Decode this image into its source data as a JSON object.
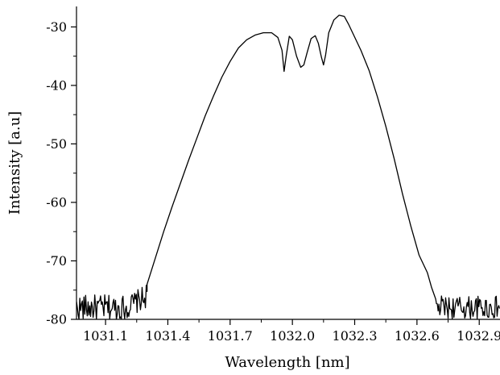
{
  "chart_data": {
    "type": "line",
    "title": "",
    "xlabel": "Wavelength [nm]",
    "ylabel": "Intensity [a.u]",
    "xlim": [
      1030.96,
      1033.0
    ],
    "ylim": [
      -80,
      -26.5
    ],
    "x_ticks": [
      1031.1,
      1031.4,
      1031.7,
      1032.0,
      1032.3,
      1032.6,
      1032.9
    ],
    "x_tick_labels": [
      "1031.1",
      "1031.4",
      "1031.7",
      "1032.0",
      "1032.3",
      "1032.6",
      "1032.9"
    ],
    "x_minor_ticks": [
      1031.25,
      1031.55,
      1031.85,
      1032.15,
      1032.45,
      1032.75
    ],
    "y_ticks": [
      -80,
      -70,
      -60,
      -50,
      -40,
      -30
    ],
    "y_tick_labels": [
      "-80",
      "-70",
      "-60",
      "-50",
      "-40",
      "-30"
    ],
    "y_minor_ticks": [
      -75,
      -65,
      -55,
      -45,
      -35
    ],
    "grid": false,
    "legend": "none",
    "line_color": "#000000",
    "series": [
      {
        "x": [
          1031.3,
          1031.34,
          1031.38,
          1031.42,
          1031.46,
          1031.5,
          1031.54,
          1031.58,
          1031.62,
          1031.66,
          1031.7,
          1031.74,
          1031.78,
          1031.82,
          1031.86,
          1031.9,
          1031.93,
          1031.95,
          1031.96,
          1031.97,
          1031.985,
          1032.0,
          1032.02,
          1032.04,
          1032.055,
          1032.07,
          1032.09,
          1032.11,
          1032.125,
          1032.14,
          1032.15,
          1032.16,
          1032.175,
          1032.2,
          1032.225,
          1032.25,
          1032.27,
          1032.29,
          1032.33,
          1032.37,
          1032.41,
          1032.45,
          1032.49,
          1032.53,
          1032.57,
          1032.61,
          1032.65,
          1032.67,
          1032.69
        ],
        "y": [
          -74.0,
          -69.5,
          -65.0,
          -60.8,
          -56.8,
          -52.8,
          -49.0,
          -45.2,
          -41.8,
          -38.6,
          -35.9,
          -33.6,
          -32.2,
          -31.4,
          -31.0,
          -31.0,
          -31.8,
          -34.0,
          -37.6,
          -35.0,
          -31.6,
          -32.2,
          -35.0,
          -36.9,
          -36.5,
          -34.5,
          -32.0,
          -31.5,
          -32.8,
          -35.2,
          -36.5,
          -34.8,
          -31.0,
          -28.8,
          -28.0,
          -28.2,
          -29.5,
          -31.0,
          -34.0,
          -37.5,
          -42.0,
          -47.0,
          -52.5,
          -58.5,
          -64.0,
          -69.0,
          -72.0,
          -74.5,
          -76.5
        ]
      }
    ],
    "noise_floor": {
      "left_range": [
        1030.96,
        1031.3
      ],
      "right_range": [
        1032.69,
        1033.0
      ],
      "baseline": -78.0,
      "amplitude": 2.0
    }
  }
}
